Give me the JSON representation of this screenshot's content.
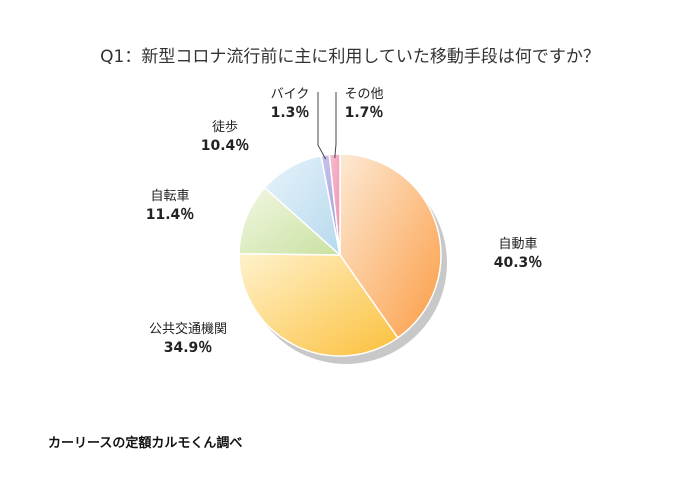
{
  "chart_data": {
    "type": "pie",
    "title": "Q1：新型コロナ流行前に主に利用していた移動手段は何ですか？",
    "slices": [
      {
        "label": "自動車",
        "percent_label": "40.3％",
        "value": 40.3,
        "color_start": "#fde9d4",
        "color_end": "#fb9d45"
      },
      {
        "label": "公共交通機関",
        "percent_label": "34.9％",
        "value": 34.9,
        "color_start": "#fff2cc",
        "color_end": "#fbc03c"
      },
      {
        "label": "自転車",
        "percent_label": "11.4％",
        "value": 11.4,
        "color_start": "#f2f7e2",
        "color_end": "#c9e1a1"
      },
      {
        "label": "徒歩",
        "percent_label": "10.4％",
        "value": 10.4,
        "color_start": "#e8f3fa",
        "color_end": "#b6d9ee"
      },
      {
        "label": "バイク",
        "percent_label": "1.3％",
        "value": 1.3,
        "color_start": "#c9c6ec",
        "color_end": "#9d99dc"
      },
      {
        "label": "その他",
        "percent_label": "1.7％",
        "value": 1.7,
        "color_start": "#f7bfd0",
        "color_end": "#ee8fae"
      }
    ]
  },
  "source_text": "カーリースの定額カルモくん調べ"
}
